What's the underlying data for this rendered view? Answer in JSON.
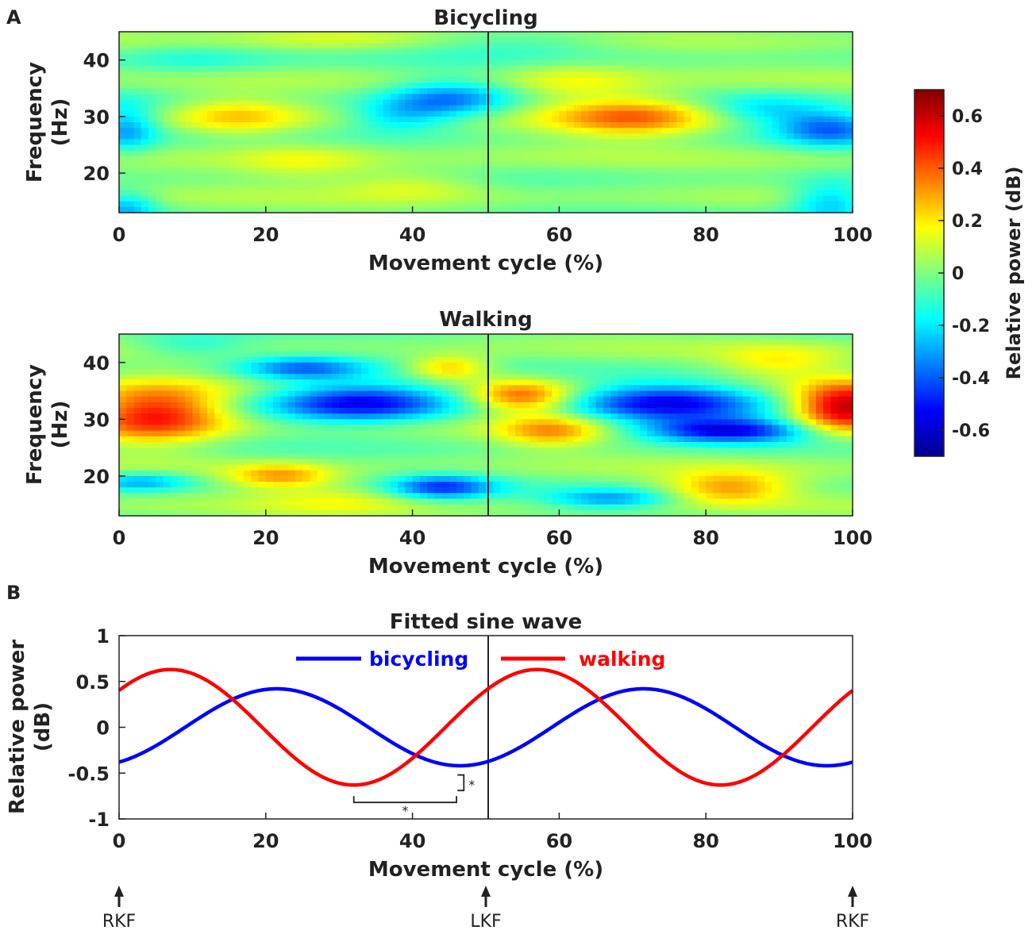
{
  "panel_labels": {
    "a": "A",
    "b": "B"
  },
  "colorbar": {
    "label": "Relative power (dB)",
    "ticks": [
      "0.6",
      "0.4",
      "0.2",
      "0",
      "-0.2",
      "-0.4",
      "-0.6"
    ],
    "tick_values": [
      0.6,
      0.4,
      0.2,
      0,
      -0.2,
      -0.4,
      -0.6
    ],
    "range": [
      -0.7,
      0.7
    ]
  },
  "chart_data": [
    {
      "type": "heatmap",
      "title": "Bicycling",
      "xlabel": "Movement cycle (%)",
      "ylabel_line1": "Frequency",
      "ylabel_line2": "(Hz)",
      "xlim": [
        0,
        100
      ],
      "ylim": [
        13,
        45
      ],
      "xticks": [
        "0",
        "20",
        "40",
        "60",
        "80",
        "100"
      ],
      "xtick_values": [
        0,
        20,
        40,
        60,
        80,
        100
      ],
      "yticks": [
        "20",
        "30",
        "40"
      ],
      "ytick_values": [
        20,
        30,
        40
      ],
      "vline_x": 50,
      "blobs": [
        {
          "x": 16,
          "f": 30,
          "v": 0.24,
          "sx": 6,
          "sf": 2.5
        },
        {
          "x": 70,
          "f": 30,
          "v": 0.38,
          "sx": 8,
          "sf": 2.5
        },
        {
          "x": 62,
          "f": 36,
          "v": 0.15,
          "sx": 7,
          "sf": 2.5
        },
        {
          "x": 45,
          "f": 33,
          "v": -0.33,
          "sx": 6,
          "sf": 2.5
        },
        {
          "x": 38,
          "f": 30,
          "v": -0.22,
          "sx": 5,
          "sf": 2
        },
        {
          "x": 97,
          "f": 28,
          "v": -0.36,
          "sx": 5,
          "sf": 2.2
        },
        {
          "x": 88,
          "f": 31,
          "v": -0.2,
          "sx": 6,
          "sf": 2
        },
        {
          "x": 1,
          "f": 28,
          "v": -0.28,
          "sx": 3,
          "sf": 3
        },
        {
          "x": 1,
          "f": 14,
          "v": -0.25,
          "sx": 3,
          "sf": 2
        },
        {
          "x": 97,
          "f": 15,
          "v": -0.28,
          "sx": 4,
          "sf": 2.5
        },
        {
          "x": 25,
          "f": 22,
          "v": 0.15,
          "sx": 7,
          "sf": 2.5
        },
        {
          "x": 40,
          "f": 18,
          "v": 0.14,
          "sx": 7,
          "sf": 2
        },
        {
          "x": 10,
          "f": 40,
          "v": -0.12,
          "sx": 8,
          "sf": 2
        },
        {
          "x": 55,
          "f": 43,
          "v": -0.1,
          "sx": 10,
          "sf": 2
        },
        {
          "x": 30,
          "f": 44,
          "v": 0.12,
          "sx": 10,
          "sf": 1.5
        }
      ]
    },
    {
      "type": "heatmap",
      "title": "Walking",
      "xlabel": "Movement cycle (%)",
      "ylabel_line1": "Frequency",
      "ylabel_line2": "(Hz)",
      "xlim": [
        0,
        100
      ],
      "ylim": [
        13,
        45
      ],
      "xticks": [
        "0",
        "20",
        "40",
        "60",
        "80",
        "100"
      ],
      "xtick_values": [
        0,
        20,
        40,
        60,
        80,
        100
      ],
      "yticks": [
        "20",
        "30",
        "40"
      ],
      "ytick_values": [
        20,
        30,
        40
      ],
      "vline_x": 50,
      "blobs": [
        {
          "x": 5,
          "f": 31,
          "v": 0.55,
          "sx": 7,
          "sf": 3.5
        },
        {
          "x": 99,
          "f": 32,
          "v": 0.65,
          "sx": 5,
          "sf": 3
        },
        {
          "x": 55,
          "f": 34,
          "v": 0.42,
          "sx": 5,
          "sf": 2
        },
        {
          "x": 59,
          "f": 28,
          "v": 0.3,
          "sx": 5,
          "sf": 2
        },
        {
          "x": 33,
          "f": 33,
          "v": -0.55,
          "sx": 9,
          "sf": 2.5
        },
        {
          "x": 25,
          "f": 39,
          "v": -0.35,
          "sx": 6,
          "sf": 1.5
        },
        {
          "x": 75,
          "f": 33,
          "v": -0.5,
          "sx": 9,
          "sf": 2.5
        },
        {
          "x": 83,
          "f": 28,
          "v": -0.55,
          "sx": 8,
          "sf": 1.5
        },
        {
          "x": 44,
          "f": 18,
          "v": -0.42,
          "sx": 5,
          "sf": 1.5
        },
        {
          "x": 67,
          "f": 16,
          "v": -0.3,
          "sx": 6,
          "sf": 1.2
        },
        {
          "x": 3,
          "f": 19,
          "v": -0.28,
          "sx": 5,
          "sf": 1.2
        },
        {
          "x": 22,
          "f": 20,
          "v": 0.3,
          "sx": 5,
          "sf": 1.5
        },
        {
          "x": 83,
          "f": 18,
          "v": 0.32,
          "sx": 6,
          "sf": 2
        },
        {
          "x": 45,
          "f": 39,
          "v": 0.3,
          "sx": 4,
          "sf": 1.5
        },
        {
          "x": 30,
          "f": 16,
          "v": 0.12,
          "sx": 8,
          "sf": 2
        },
        {
          "x": 90,
          "f": 40,
          "v": 0.18,
          "sx": 6,
          "sf": 2
        },
        {
          "x": 10,
          "f": 43,
          "v": -0.15,
          "sx": 6,
          "sf": 1.5
        }
      ]
    },
    {
      "type": "line",
      "title": "Fitted sine wave",
      "xlabel": "Movement cycle (%)",
      "ylabel_line1": "Relative power",
      "ylabel_line2": "(dB)",
      "xlim": [
        0,
        100
      ],
      "ylim": [
        -1,
        1
      ],
      "xticks": [
        "0",
        "20",
        "40",
        "60",
        "80",
        "100"
      ],
      "xtick_values": [
        0,
        20,
        40,
        60,
        80,
        100
      ],
      "yticks": [
        "1",
        "0.5",
        "0",
        "-0.5",
        "-1"
      ],
      "ytick_values": [
        1,
        0.5,
        0,
        -0.5,
        -1
      ],
      "vline_x": 50,
      "series": [
        {
          "name": "bicycling",
          "color": "#0000ff",
          "amplitude": 0.42,
          "period": 50,
          "peak_x": 21.5
        },
        {
          "name": "walking",
          "color": "#ff0000",
          "amplitude": 0.63,
          "period": 50,
          "peak_x": 7
        }
      ],
      "significance": {
        "horizontal_bracket": {
          "x_start": 32,
          "x_end": 46,
          "y": -0.82,
          "label": "*"
        },
        "vertical_bracket": {
          "x": 47,
          "y_top": -0.52,
          "y_bottom": -0.69,
          "label": "*"
        }
      },
      "events": [
        {
          "x": 0,
          "label": "RKF"
        },
        {
          "x": 50,
          "label": "LKF"
        },
        {
          "x": 100,
          "label": "RKF"
        }
      ]
    }
  ]
}
